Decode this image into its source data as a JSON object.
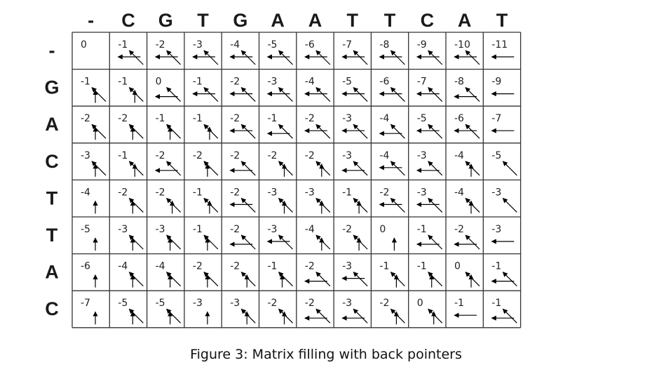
{
  "caption": "Figure 3: Matrix filling with back pointers",
  "column_header": [
    "-",
    "C",
    "G",
    "T",
    "G",
    "A",
    "A",
    "T",
    "T",
    "C",
    "A",
    "T"
  ],
  "row_header": [
    "-",
    "G",
    "A",
    "C",
    "T",
    "T",
    "A",
    "C"
  ],
  "matrix": [
    [
      "0",
      "-1",
      "-2",
      "-3",
      "-4",
      "-5",
      "-6",
      "-7",
      "-8",
      "-9",
      "-10",
      "-11"
    ],
    [
      "-1",
      "-1",
      "0",
      "-1",
      "-2",
      "-3",
      "-4",
      "-5",
      "-6",
      "-7",
      "-8",
      "-9"
    ],
    [
      "-2",
      "-2",
      "-1",
      "-1",
      "-2",
      "-1",
      "-2",
      "-3",
      "-4",
      "-5",
      "-6",
      "-7"
    ],
    [
      "-3",
      "-1",
      "-2",
      "-2",
      "-2",
      "-2",
      "-2",
      "-3",
      "-4",
      "-3",
      "-4",
      "-5"
    ],
    [
      "-4",
      "-2",
      "-2",
      "-1",
      "-2",
      "-3",
      "-3",
      "-1",
      "-2",
      "-3",
      "-4",
      "-3"
    ],
    [
      "-5",
      "-3",
      "-3",
      "-1",
      "-2",
      "-3",
      "-4",
      "-2",
      "0",
      "-1",
      "-2",
      "-3"
    ],
    [
      "-6",
      "-4",
      "-4",
      "-2",
      "-2",
      "-1",
      "-2",
      "-3",
      "-1",
      "-1",
      "0",
      "-1"
    ],
    [
      "-7",
      "-5",
      "-5",
      "-3",
      "-3",
      "-2",
      "-2",
      "-3",
      "-2",
      "0",
      "-1",
      "-1"
    ]
  ],
  "back_pointers": [
    [
      [],
      [
        "left",
        "diag"
      ],
      [
        "left",
        "diag"
      ],
      [
        "left",
        "diag"
      ],
      [
        "left",
        "diag"
      ],
      [
        "left",
        "diag"
      ],
      [
        "left",
        "diag"
      ],
      [
        "left",
        "diag"
      ],
      [
        "left",
        "diag"
      ],
      [
        "left",
        "diag"
      ],
      [
        "left",
        "diag"
      ],
      [
        "left"
      ]
    ],
    [
      [
        "up",
        "diag"
      ],
      [
        "diag",
        "up"
      ],
      [
        "diag",
        "left"
      ],
      [
        "left",
        "diag"
      ],
      [
        "left",
        "diag"
      ],
      [
        "left",
        "diag"
      ],
      [
        "left",
        "diag"
      ],
      [
        "left",
        "diag"
      ],
      [
        "left",
        "diag"
      ],
      [
        "left",
        "diag"
      ],
      [
        "diag",
        "left"
      ],
      [
        "left"
      ]
    ],
    [
      [
        "up",
        "diag"
      ],
      [
        "up",
        "diag"
      ],
      [
        "up",
        "diag"
      ],
      [
        "diag",
        "up"
      ],
      [
        "left",
        "diag"
      ],
      [
        "diag",
        "left"
      ],
      [
        "left",
        "diag"
      ],
      [
        "left",
        "diag"
      ],
      [
        "diag",
        "left"
      ],
      [
        "left",
        "diag"
      ],
      [
        "left",
        "diag"
      ],
      [
        "left"
      ]
    ],
    [
      [
        "up",
        "diag"
      ],
      [
        "diag",
        "up"
      ],
      [
        "diag",
        "left"
      ],
      [
        "up",
        "diag"
      ],
      [
        "diag",
        "left"
      ],
      [
        "diag",
        "up"
      ],
      [
        "diag",
        "up"
      ],
      [
        "diag",
        "left"
      ],
      [
        "left",
        "diag"
      ],
      [
        "diag",
        "left"
      ],
      [
        "diag",
        "up"
      ],
      [
        "diag"
      ]
    ],
    [
      [
        "up"
      ],
      [
        "up",
        "diag"
      ],
      [
        "diag",
        "up"
      ],
      [
        "diag",
        "up"
      ],
      [
        "left",
        "diag"
      ],
      [
        "diag",
        "up"
      ],
      [
        "diag",
        "up"
      ],
      [
        "diag",
        "up"
      ],
      [
        "left",
        "diag"
      ],
      [
        "left",
        "diag"
      ],
      [
        "diag",
        "up"
      ],
      [
        "diag"
      ]
    ],
    [
      [
        "up"
      ],
      [
        "up",
        "diag"
      ],
      [
        "up",
        "diag"
      ],
      [
        "up",
        "diag"
      ],
      [
        "diag",
        "left"
      ],
      [
        "left",
        "diag"
      ],
      [
        "diag",
        "up"
      ],
      [
        "diag",
        "up"
      ],
      [
        "up"
      ],
      [
        "diag",
        "left"
      ],
      [
        "diag",
        "left"
      ],
      [
        "left"
      ]
    ],
    [
      [
        "up"
      ],
      [
        "up",
        "diag"
      ],
      [
        "up",
        "diag"
      ],
      [
        "up",
        "diag"
      ],
      [
        "diag",
        "up"
      ],
      [
        "up",
        "diag"
      ],
      [
        "diag",
        "left"
      ],
      [
        "left",
        "diag"
      ],
      [
        "diag",
        "up"
      ],
      [
        "up",
        "diag"
      ],
      [
        "diag",
        "up"
      ],
      [
        "diag",
        "left"
      ]
    ],
    [
      [
        "up"
      ],
      [
        "up",
        "diag"
      ],
      [
        "up",
        "diag"
      ],
      [
        "up"
      ],
      [
        "diag",
        "up"
      ],
      [
        "diag",
        "up"
      ],
      [
        "diag",
        "left"
      ],
      [
        "diag",
        "left"
      ],
      [
        "diag",
        "up"
      ],
      [
        "diag",
        "up"
      ],
      [
        "left"
      ],
      [
        "diag",
        "left"
      ]
    ]
  ]
}
